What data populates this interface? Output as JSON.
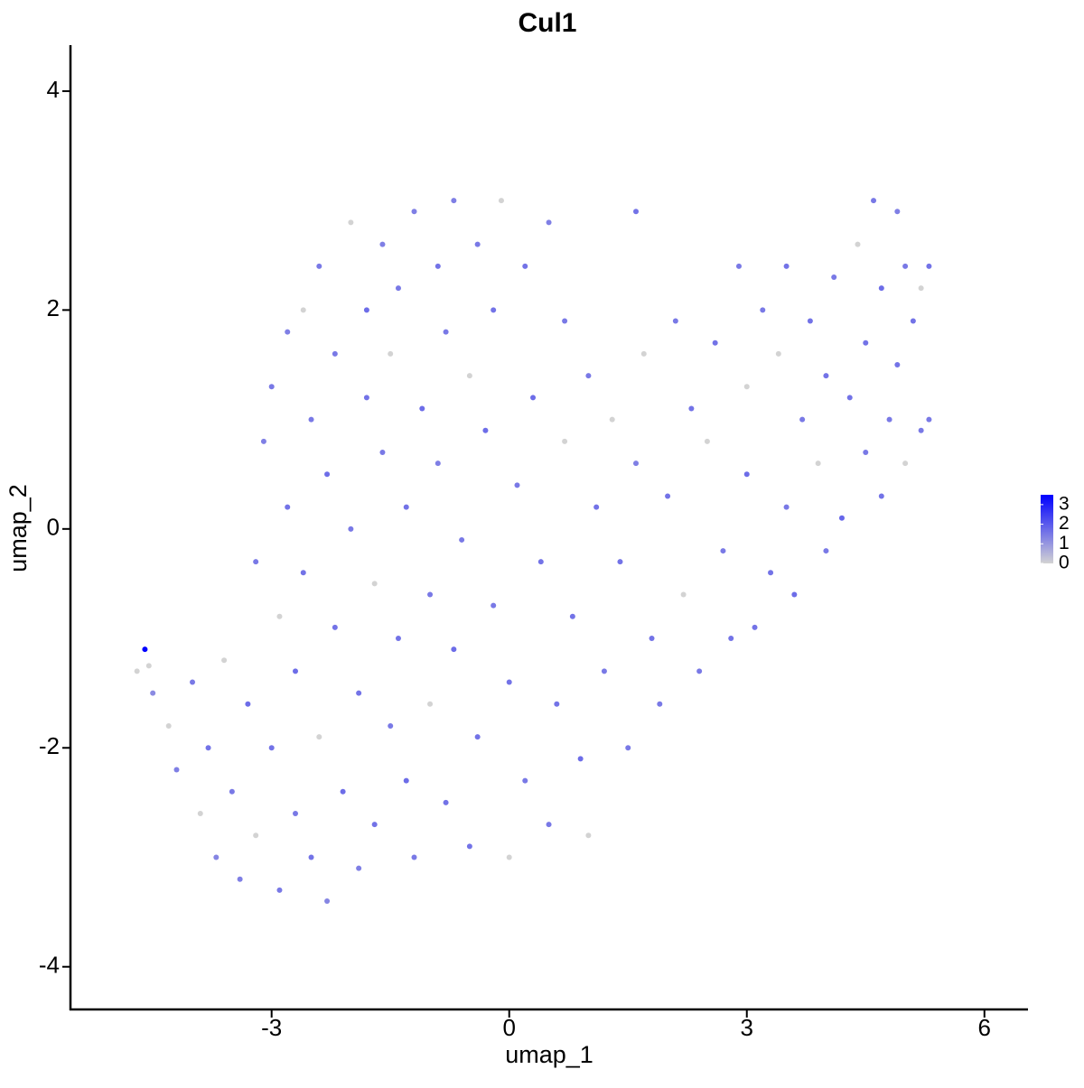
{
  "chart_data": {
    "type": "scatter",
    "title": "Cul1",
    "x_label": "umap_1",
    "y_label": "umap_2",
    "xlim": [
      -5.54,
      6.55
    ],
    "ylim": [
      -4.39,
      4.42
    ],
    "xticks": [
      -3,
      0,
      3,
      6
    ],
    "yticks": [
      -4,
      -2,
      0,
      2,
      4
    ],
    "color_low": "#d3d3d3",
    "color_high": "#0000ff",
    "color_lim": [
      0,
      3.5
    ],
    "color_ticks": [
      0,
      1,
      2,
      3
    ],
    "x": [
      -4.6,
      -4.7,
      -4.55,
      -4.5,
      -4.3,
      -4.2,
      -4.0,
      -3.9,
      -3.8,
      -3.7,
      -3.6,
      -3.5,
      -3.4,
      -3.3,
      -3.2,
      -3.2,
      -3.1,
      -3.0,
      -3.0,
      -2.9,
      -2.9,
      -2.8,
      -2.8,
      -2.7,
      -2.7,
      -2.6,
      -2.6,
      -2.5,
      -2.5,
      -2.4,
      -2.4,
      -2.3,
      -2.3,
      -2.2,
      -2.2,
      -2.1,
      -2.0,
      -2.0,
      -1.9,
      -1.9,
      -1.8,
      -1.8,
      -1.7,
      -1.7,
      -1.6,
      -1.6,
      -1.5,
      -1.5,
      -1.4,
      -1.4,
      -1.3,
      -1.3,
      -1.2,
      -1.2,
      -1.1,
      -1.0,
      -1.0,
      -0.9,
      -0.9,
      -0.8,
      -0.8,
      -0.7,
      -0.7,
      -0.6,
      -0.5,
      -0.5,
      -0.4,
      -0.4,
      -0.3,
      -0.2,
      -0.2,
      -0.1,
      0.0,
      0.0,
      0.1,
      0.2,
      0.2,
      0.3,
      0.4,
      0.5,
      0.5,
      0.6,
      0.7,
      0.7,
      0.8,
      0.9,
      1.0,
      1.0,
      1.1,
      1.2,
      1.3,
      1.4,
      1.5,
      1.6,
      1.6,
      1.7,
      1.8,
      1.9,
      2.0,
      2.1,
      2.2,
      2.3,
      2.4,
      2.5,
      2.6,
      2.7,
      2.8,
      2.9,
      3.0,
      3.0,
      3.1,
      3.2,
      3.3,
      3.4,
      3.5,
      3.5,
      3.6,
      3.7,
      3.8,
      3.9,
      4.0,
      4.0,
      4.1,
      4.2,
      4.3,
      4.4,
      4.5,
      4.5,
      4.6,
      4.7,
      4.7,
      4.8,
      4.9,
      4.9,
      5.0,
      5.0,
      5.1,
      5.2,
      5.2,
      5.3,
      5.3
    ],
    "values": [
      -1.1,
      -1.3,
      -1.25,
      -1.5,
      -1.8,
      -2.2,
      -1.4,
      -2.6,
      -2.0,
      -3.0,
      -1.2,
      -2.4,
      -3.2,
      -1.6,
      -0.3,
      -2.8,
      0.8,
      -2.0,
      1.3,
      -0.8,
      -3.3,
      0.2,
      1.8,
      -1.3,
      -2.6,
      2.0,
      -0.4,
      1.0,
      -3.0,
      -1.9,
      2.4,
      0.5,
      -3.4,
      -0.9,
      1.6,
      -2.4,
      2.8,
      0.0,
      -1.5,
      -3.1,
      1.2,
      2.0,
      -0.5,
      -2.7,
      0.7,
      2.6,
      -1.8,
      1.6,
      -1.0,
      2.2,
      -2.3,
      0.2,
      2.9,
      -3.0,
      1.1,
      -0.6,
      -1.6,
      2.4,
      0.6,
      -2.5,
      1.8,
      -1.1,
      3.0,
      -0.1,
      1.4,
      -2.9,
      2.6,
      -1.9,
      0.9,
      -0.7,
      2.0,
      3.0,
      -1.4,
      -3.0,
      0.4,
      2.4,
      -2.3,
      1.2,
      -0.3,
      -2.7,
      2.8,
      -1.6,
      0.8,
      1.9,
      -0.8,
      -2.1,
      1.4,
      -2.8,
      0.2,
      -1.3,
      1.0,
      -0.3,
      -2.0,
      2.9,
      0.6,
      1.6,
      -1.0,
      -1.6,
      0.3,
      1.9,
      -0.6,
      1.1,
      -1.3,
      0.8,
      1.7,
      -0.2,
      -1.0,
      2.4,
      0.5,
      1.3,
      -0.9,
      2.0,
      -0.4,
      1.6,
      0.2,
      2.4,
      -0.6,
      1.0,
      1.9,
      0.6,
      -0.2,
      1.4,
      2.3,
      0.1,
      1.2,
      2.6,
      0.7,
      1.7,
      3.0,
      0.3,
      2.2,
      1.0,
      2.9,
      1.5,
      0.6,
      2.4,
      1.9,
      0.9,
      2.2,
      2.4,
      1.0
    ],
    "color_values": [
      3.5,
      0,
      0,
      1.2,
      0,
      1.4,
      1.5,
      0,
      1.6,
      1.3,
      0,
      1.5,
      1.4,
      1.7,
      1.5,
      0,
      1.4,
      1.6,
      1.5,
      0,
      1.5,
      1.6,
      1.4,
      1.7,
      1.5,
      0,
      1.6,
      1.5,
      1.6,
      0,
      1.5,
      1.7,
      1.3,
      1.6,
      1.5,
      1.7,
      0,
      1.5,
      1.6,
      1.4,
      1.6,
      1.7,
      0,
      1.6,
      1.5,
      1.4,
      1.5,
      0,
      1.6,
      1.5,
      1.7,
      1.6,
      1.4,
      1.5,
      1.7,
      1.5,
      0,
      1.6,
      1.4,
      1.6,
      1.5,
      1.7,
      1.4,
      1.5,
      0,
      1.6,
      1.5,
      1.6,
      1.7,
      1.5,
      1.6,
      0,
      1.6,
      0,
      1.5,
      1.6,
      1.5,
      1.7,
      1.6,
      1.5,
      1.4,
      1.6,
      0,
      1.5,
      1.6,
      1.7,
      1.5,
      0,
      1.6,
      1.5,
      0,
      1.6,
      1.5,
      1.6,
      1.4,
      0,
      1.6,
      1.5,
      1.6,
      1.5,
      0,
      1.6,
      1.5,
      0,
      1.6,
      1.5,
      1.6,
      1.5,
      1.7,
      0,
      1.6,
      1.5,
      1.6,
      0,
      1.5,
      1.6,
      1.7,
      1.5,
      1.6,
      0,
      1.5,
      1.6,
      1.5,
      1.8,
      1.6,
      0,
      1.5,
      1.6,
      1.5,
      1.6,
      1.7,
      1.5,
      1.4,
      1.6,
      0,
      1.5,
      1.6,
      1.5,
      0,
      1.6,
      1.5
    ]
  }
}
